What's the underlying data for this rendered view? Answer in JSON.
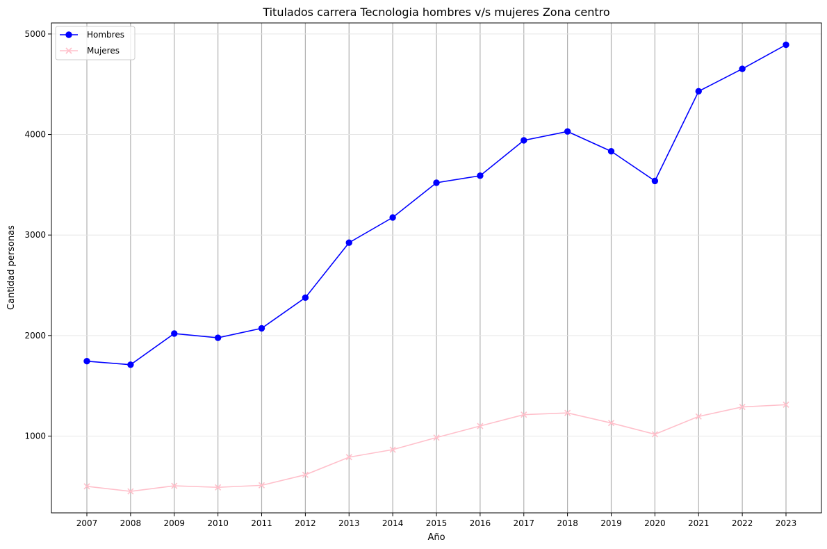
{
  "chart_data": {
    "type": "line",
    "title": "Titulados carrera Tecnologia hombres v/s mujeres Zona centro",
    "xlabel": "Año",
    "ylabel": "Cantidad personas",
    "categories": [
      "2007",
      "2008",
      "2009",
      "2010",
      "2011",
      "2012",
      "2013",
      "2014",
      "2015",
      "2016",
      "2017",
      "2018",
      "2019",
      "2020",
      "2021",
      "2022",
      "2023"
    ],
    "yticks": [
      1000,
      2000,
      3000,
      4000,
      5000
    ],
    "ylim": [
      236,
      5110
    ],
    "grid": true,
    "legend_position": "top-left",
    "series": [
      {
        "name": "Hombres",
        "color": "#0000ff",
        "marker": "circle",
        "values": [
          1745,
          1710,
          2020,
          1978,
          2072,
          2377,
          2924,
          3175,
          3520,
          3590,
          3942,
          4030,
          3833,
          3538,
          4430,
          4653,
          4893
        ]
      },
      {
        "name": "Mujeres",
        "color": "#ffc0cb",
        "marker": "x",
        "values": [
          500,
          450,
          505,
          490,
          510,
          615,
          790,
          865,
          985,
          1100,
          1213,
          1230,
          1130,
          1018,
          1195,
          1290,
          1312
        ]
      }
    ]
  }
}
